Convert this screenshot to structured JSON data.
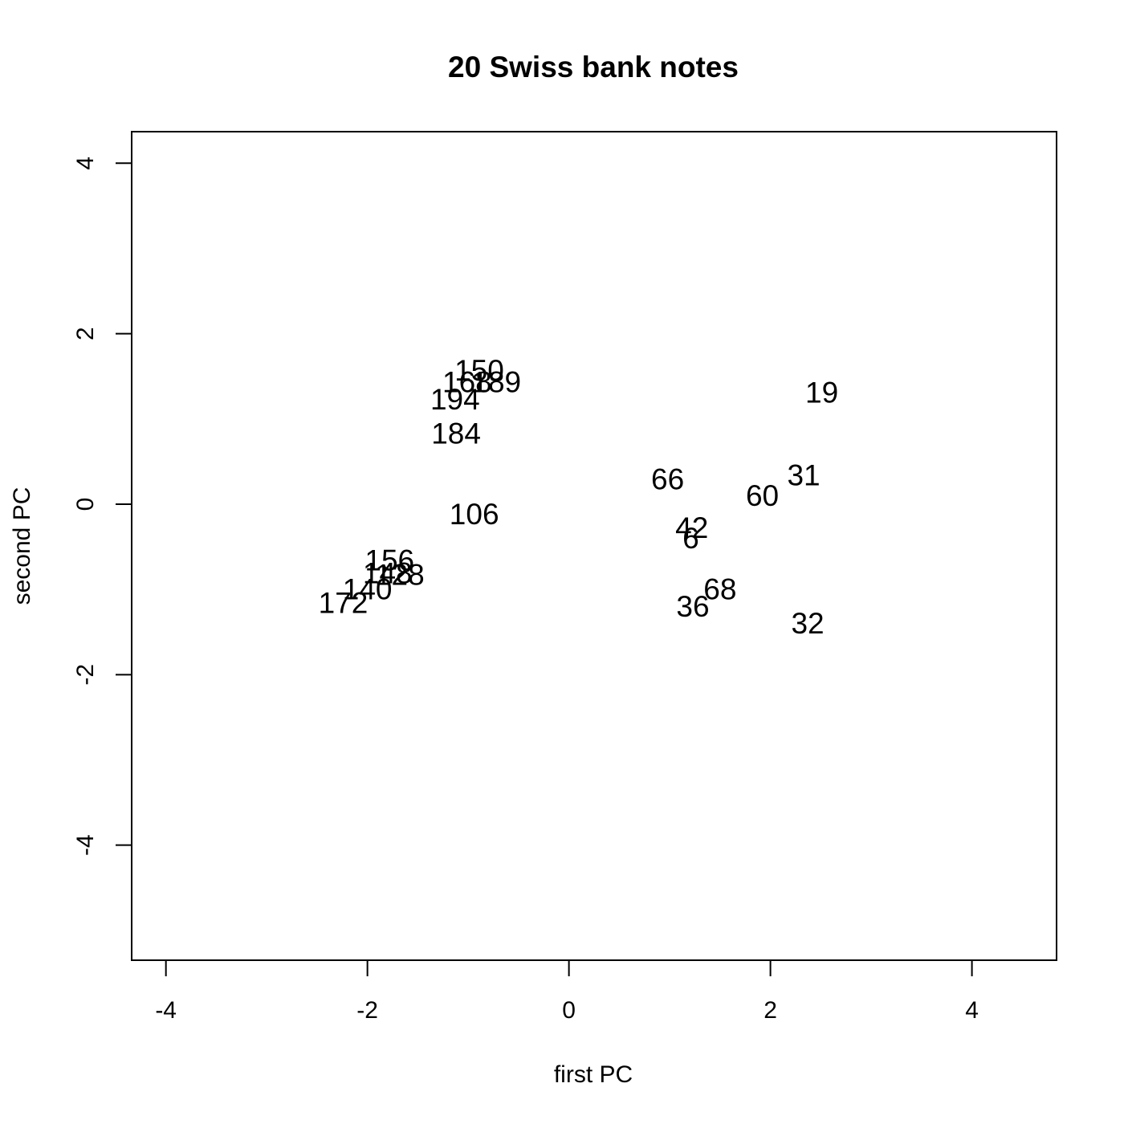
{
  "chart_data": {
    "type": "scatter",
    "title": "20 Swiss bank notes",
    "xlabel": "first PC",
    "ylabel": "second PC",
    "xlim": [
      -4.34,
      4.84
    ],
    "ylim": [
      -5.35,
      4.37
    ],
    "xticks": [
      -4,
      -2,
      0,
      2,
      4
    ],
    "yticks": [
      -4,
      -2,
      0,
      2,
      4
    ],
    "x_tick_labels": [
      "-4",
      "-2",
      "0",
      "2",
      "4"
    ],
    "y_tick_labels": [
      "-4",
      "-2",
      "0",
      "2",
      "4"
    ],
    "grid": false,
    "marker": "text labels",
    "points": [
      {
        "label": "150",
        "x": -0.89,
        "y": 1.57
      },
      {
        "label": "168",
        "x": -1.01,
        "y": 1.43
      },
      {
        "label": "189",
        "x": -0.72,
        "y": 1.43
      },
      {
        "label": "194",
        "x": -1.13,
        "y": 1.23
      },
      {
        "label": "184",
        "x": -1.12,
        "y": 0.83
      },
      {
        "label": "106",
        "x": -0.94,
        "y": -0.12
      },
      {
        "label": "156",
        "x": -1.78,
        "y": -0.66
      },
      {
        "label": "148",
        "x": -1.8,
        "y": -0.81
      },
      {
        "label": "128",
        "x": -1.68,
        "y": -0.83
      },
      {
        "label": "140",
        "x": -2.0,
        "y": -1.0
      },
      {
        "label": "172",
        "x": -2.24,
        "y": -1.16
      },
      {
        "label": "19",
        "x": 2.51,
        "y": 1.31
      },
      {
        "label": "31",
        "x": 2.33,
        "y": 0.34
      },
      {
        "label": "66",
        "x": 0.98,
        "y": 0.29
      },
      {
        "label": "60",
        "x": 1.92,
        "y": 0.1
      },
      {
        "label": "42",
        "x": 1.22,
        "y": -0.28
      },
      {
        "label": "6",
        "x": 1.21,
        "y": -0.4
      },
      {
        "label": "68",
        "x": 1.5,
        "y": -1.0
      },
      {
        "label": "36",
        "x": 1.23,
        "y": -1.2
      },
      {
        "label": "32",
        "x": 2.37,
        "y": -1.4
      }
    ]
  }
}
